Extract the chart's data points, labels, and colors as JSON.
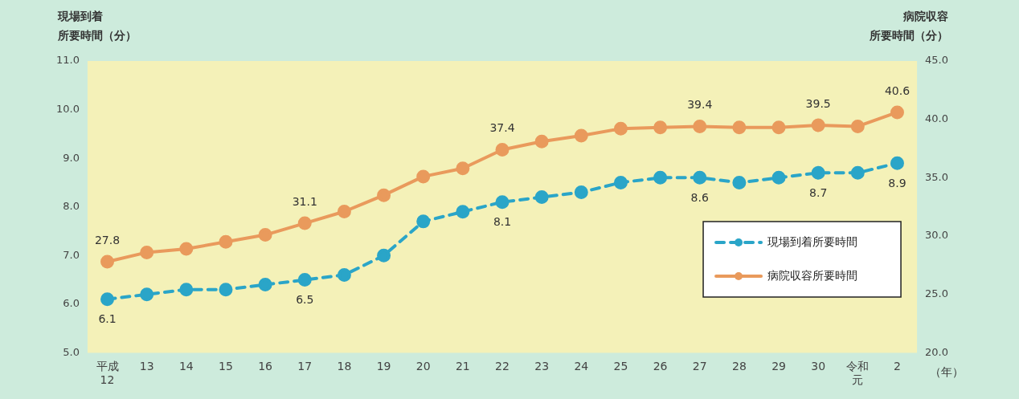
{
  "chart_data": {
    "type": "line",
    "ylabel": "現場到着所要時間（分）",
    "y2label": "病院収容所要時間（分）",
    "xlabel": "（年）",
    "categories": [
      "平成12",
      "13",
      "14",
      "15",
      "16",
      "17",
      "18",
      "19",
      "20",
      "21",
      "22",
      "23",
      "24",
      "25",
      "26",
      "27",
      "28",
      "29",
      "30",
      "令和元",
      "2"
    ],
    "series": [
      {
        "name": "現場到着所要時間",
        "color": "#2aa5c8",
        "line_style": "dashed",
        "axis": "y",
        "values": [
          6.1,
          6.2,
          6.3,
          6.3,
          6.4,
          6.5,
          6.6,
          7.0,
          7.7,
          7.9,
          8.1,
          8.2,
          8.3,
          8.5,
          8.6,
          8.6,
          8.5,
          8.6,
          8.7,
          8.7,
          8.9
        ],
        "value_labels": [
          "6.1",
          null,
          null,
          null,
          null,
          "6.5",
          null,
          null,
          null,
          null,
          "8.1",
          null,
          null,
          null,
          null,
          "8.6",
          null,
          null,
          "8.7",
          null,
          "8.9"
        ]
      },
      {
        "name": "病院収容所要時間",
        "color": "#e99a5c",
        "line_style": "solid",
        "axis": "y2",
        "values": [
          27.8,
          28.6,
          28.9,
          29.5,
          30.1,
          31.1,
          32.1,
          33.5,
          35.1,
          35.8,
          37.4,
          38.1,
          38.6,
          39.2,
          39.3,
          39.4,
          39.3,
          39.3,
          39.5,
          39.4,
          40.6
        ],
        "value_labels": [
          "27.8",
          null,
          null,
          null,
          null,
          "31.1",
          null,
          null,
          null,
          null,
          "37.4",
          null,
          null,
          null,
          null,
          "39.4",
          null,
          null,
          "39.5",
          null,
          "40.6"
        ]
      }
    ],
    "ylim": [
      5,
      11
    ],
    "yticks": [
      {
        "value": 5,
        "label": "5.0"
      },
      {
        "value": 6,
        "label": "6.0"
      },
      {
        "value": 7,
        "label": "7.0"
      },
      {
        "value": 8,
        "label": "8.0"
      },
      {
        "value": 9,
        "label": "9.0"
      },
      {
        "value": 10,
        "label": "10.0"
      },
      {
        "value": 11,
        "label": "11.0"
      }
    ],
    "y2lim": [
      20,
      45
    ],
    "y2ticks": [
      {
        "value": 20,
        "label": "20.0"
      },
      {
        "value": 25,
        "label": "25.0"
      },
      {
        "value": 30,
        "label": "30.0"
      },
      {
        "value": 35,
        "label": "35.0"
      },
      {
        "value": 40,
        "label": "40.0"
      },
      {
        "value": 45,
        "label": "45.0"
      }
    ],
    "grid": false,
    "legend": "right",
    "marker": "circle"
  }
}
